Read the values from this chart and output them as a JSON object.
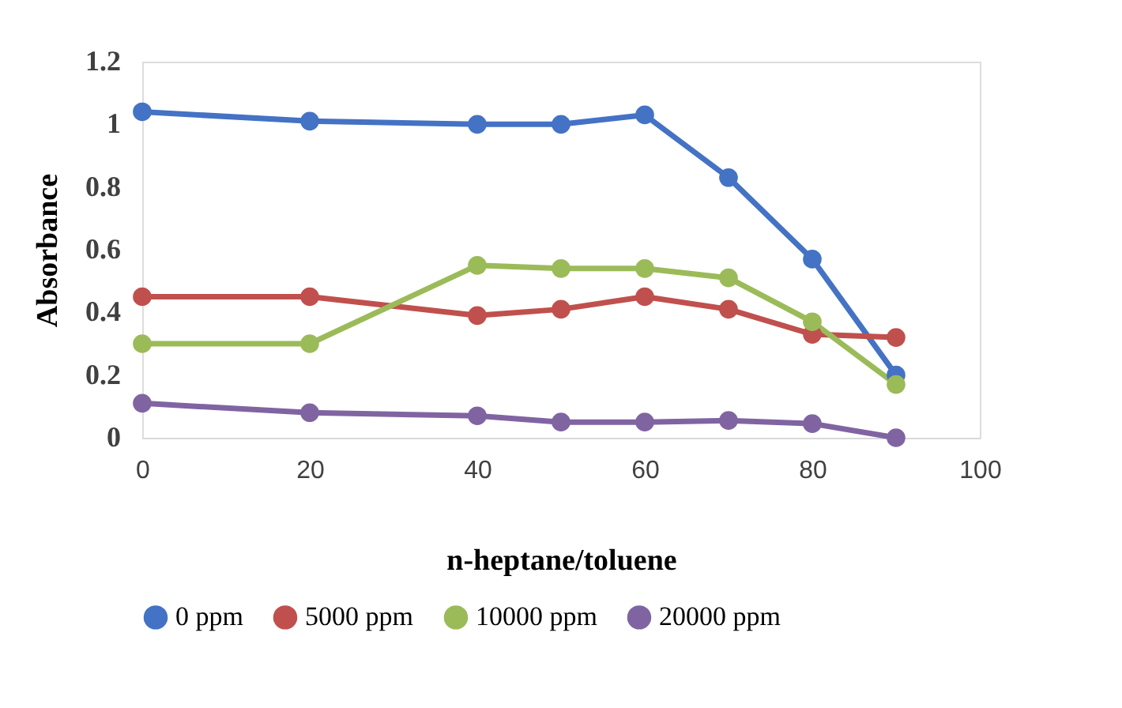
{
  "chart_data": {
    "type": "line",
    "xlabel": "n-heptane/toluene",
    "ylabel": "Absorbance",
    "x": [
      0,
      20,
      40,
      50,
      60,
      70,
      80,
      90
    ],
    "series": [
      {
        "name": "0 ppm",
        "color": "#4472c4",
        "values": [
          1.04,
          1.01,
          1.0,
          1.0,
          1.03,
          0.83,
          0.57,
          0.2
        ]
      },
      {
        "name": "5000 ppm",
        "color": "#c0504d",
        "values": [
          0.45,
          0.45,
          0.39,
          0.41,
          0.45,
          0.41,
          0.33,
          0.32
        ]
      },
      {
        "name": "10000 ppm",
        "color": "#9bbb59",
        "values": [
          0.3,
          0.3,
          0.55,
          0.54,
          0.54,
          0.51,
          0.37,
          0.17
        ]
      },
      {
        "name": "20000 ppm",
        "color": "#8064a2",
        "values": [
          0.11,
          0.08,
          0.07,
          0.05,
          0.05,
          0.055,
          0.045,
          0.0
        ]
      }
    ],
    "xlim": [
      0,
      100
    ],
    "xticks": [
      0,
      20,
      40,
      60,
      80,
      100
    ],
    "ylim": [
      0,
      1.2
    ],
    "yticks": [
      0,
      0.2,
      0.4,
      0.6,
      0.8,
      1,
      1.2
    ],
    "grid": false,
    "legend": "bottom",
    "marker": "circle",
    "line_style": "solid"
  }
}
